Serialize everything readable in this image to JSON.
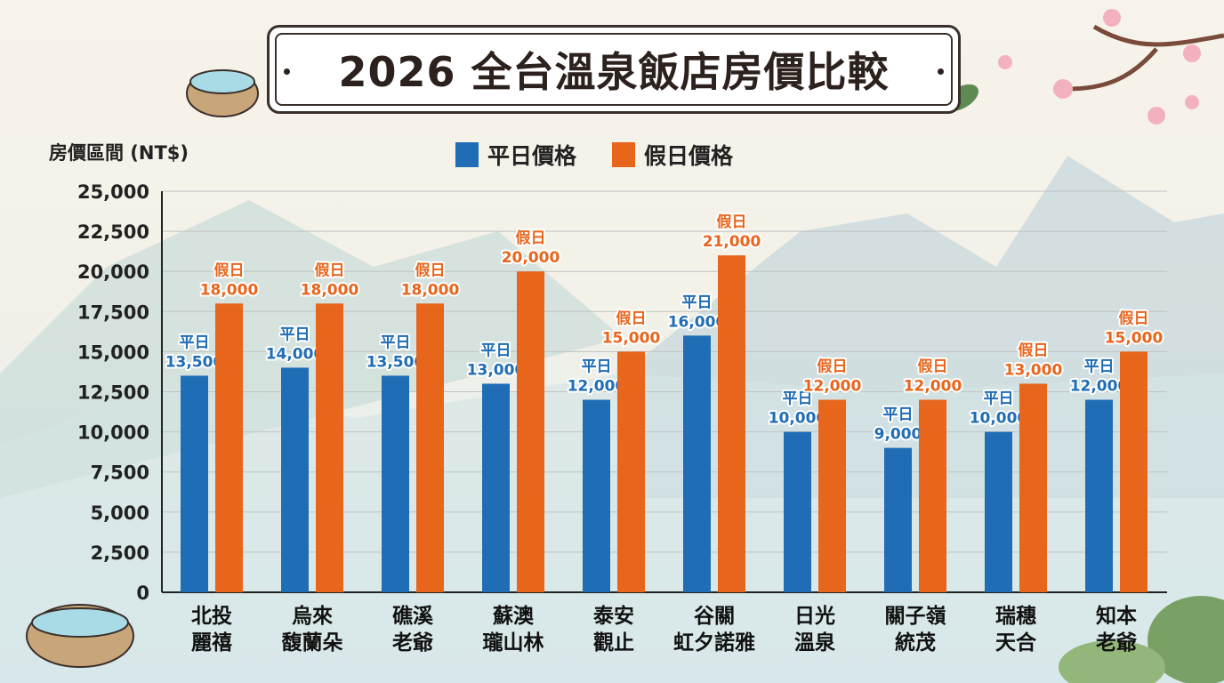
{
  "title": "2026 全台溫泉飯店房價比較",
  "colors": {
    "weekday": "#1f6db5",
    "weekend": "#e8651c"
  },
  "chart_data": {
    "type": "bar",
    "title": "2026 全台溫泉飯店房價比較",
    "ylabel": "房價區間 (NT$)",
    "xlabel": "",
    "ylim": [
      0,
      25000
    ],
    "yticks": [
      0,
      2500,
      5000,
      7500,
      10000,
      12500,
      15000,
      17500,
      20000,
      22500,
      25000
    ],
    "ytick_labels": [
      "0",
      "2,500",
      "5,000",
      "7,500",
      "10,000",
      "12,500",
      "15,000",
      "17,500",
      "20,000",
      "22,500",
      "25,000"
    ],
    "grid": true,
    "legend_position": "top-center",
    "categories": [
      [
        "北投",
        "麗禧"
      ],
      [
        "烏來",
        "馥蘭朵"
      ],
      [
        "礁溪",
        "老爺"
      ],
      [
        "蘇澳",
        "瓏山林"
      ],
      [
        "泰安",
        "觀止"
      ],
      [
        "谷關",
        "虹夕諾雅"
      ],
      [
        "日光",
        "溫泉"
      ],
      [
        "關子嶺",
        "統茂"
      ],
      [
        "瑞穗",
        "天合"
      ],
      [
        "知本",
        "老爺"
      ]
    ],
    "series": [
      {
        "name": "平日價格",
        "short": "平日",
        "values": [
          13500,
          14000,
          13500,
          13000,
          12000,
          16000,
          10000,
          9000,
          10000,
          12000
        ],
        "labels": [
          "13,500",
          "14,000",
          "13,500",
          "13,000",
          "12,000",
          "16,000",
          "10,000",
          "9,000",
          "10,000",
          "12,000"
        ]
      },
      {
        "name": "假日價格",
        "short": "假日",
        "values": [
          18000,
          18000,
          18000,
          20000,
          15000,
          21000,
          12000,
          12000,
          13000,
          15000
        ],
        "labels": [
          "18,000",
          "18,000",
          "18,000",
          "20,000",
          "15,000",
          "21,000",
          "12,000",
          "12,000",
          "13,000",
          "15,000"
        ]
      }
    ]
  }
}
